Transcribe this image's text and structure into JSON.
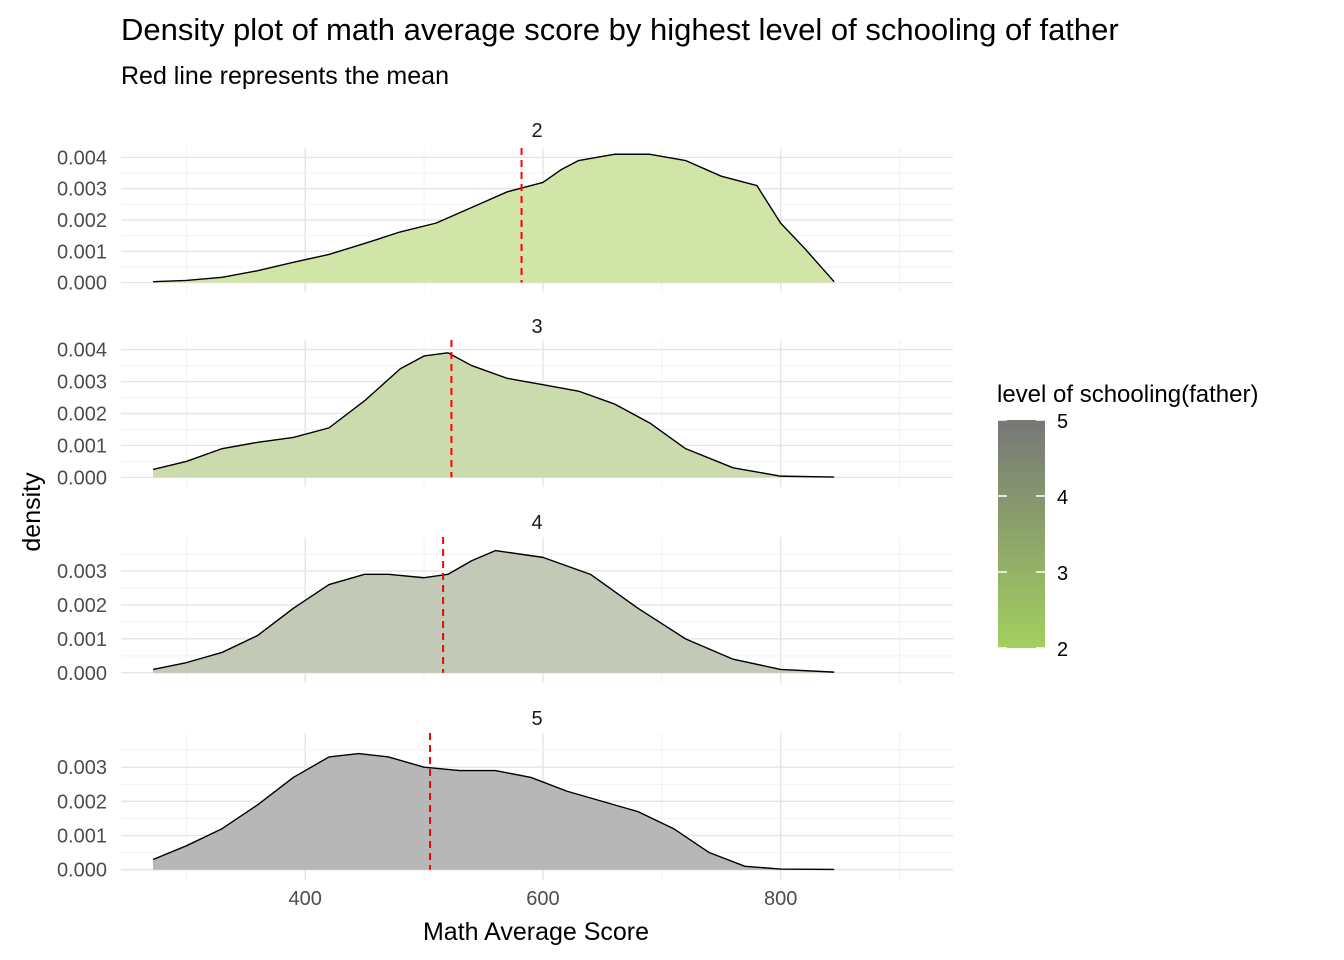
{
  "chart_data": {
    "type": "area",
    "title": "Density plot of math average score by highest level of schooling of father",
    "subtitle": "Red line represents the mean",
    "xlabel": "Math Average Score",
    "ylabel": "density",
    "xlim": [
      245,
      945
    ],
    "x_ticks": [
      400,
      600,
      800
    ],
    "x_tick_labels": [
      "400",
      "600",
      "800"
    ],
    "grid": true,
    "mean_line_color": "#ff0000",
    "legend": {
      "title": "level of schooling(father)",
      "position": "right",
      "min": 2,
      "max": 5,
      "labels": [
        "2",
        "3",
        "4",
        "5"
      ],
      "low_color": "#a2d05e",
      "high_color": "#777777"
    },
    "panels": [
      {
        "label": "2",
        "level": 2,
        "fill": "#d1e5a9",
        "mean": 582,
        "ylim": [
          -0.0003,
          0.0043
        ],
        "y_ticks": [
          0,
          0.001,
          0.002,
          0.003,
          0.004
        ],
        "y_tick_labels": [
          "0.000",
          "0.001",
          "0.002",
          "0.003",
          "0.004"
        ],
        "x": [
          272,
          300,
          330,
          360,
          390,
          420,
          450,
          480,
          510,
          540,
          570,
          600,
          615,
          630,
          660,
          690,
          720,
          750,
          780,
          800,
          820,
          845
        ],
        "y": [
          3e-05,
          7e-05,
          0.00017,
          0.00038,
          0.00065,
          0.0009,
          0.00125,
          0.00162,
          0.0019,
          0.0024,
          0.0029,
          0.0032,
          0.0036,
          0.0039,
          0.0041,
          0.0041,
          0.0039,
          0.0034,
          0.0031,
          0.0019,
          0.0011,
          3e-05
        ]
      },
      {
        "label": "3",
        "level": 3,
        "fill": "#cbdbae",
        "mean": 523,
        "ylim": [
          -0.0003,
          0.0043
        ],
        "y_ticks": [
          0,
          0.001,
          0.002,
          0.003,
          0.004
        ],
        "y_tick_labels": [
          "0.000",
          "0.001",
          "0.002",
          "0.003",
          "0.004"
        ],
        "x": [
          272,
          300,
          330,
          360,
          390,
          420,
          450,
          480,
          500,
          520,
          540,
          570,
          600,
          630,
          660,
          690,
          720,
          760,
          800,
          845
        ],
        "y": [
          0.00025,
          0.0005,
          0.0009,
          0.0011,
          0.00125,
          0.00155,
          0.0024,
          0.0034,
          0.0038,
          0.0039,
          0.0035,
          0.0031,
          0.0029,
          0.0027,
          0.0023,
          0.0017,
          0.0009,
          0.0003,
          4e-05,
          1e-05
        ]
      },
      {
        "label": "4",
        "level": 4,
        "fill": "#c2c9b6",
        "mean": 516,
        "ylim": [
          -0.0003,
          0.004
        ],
        "y_ticks": [
          0,
          0.001,
          0.002,
          0.003
        ],
        "y_tick_labels": [
          "0.000",
          "0.001",
          "0.002",
          "0.003"
        ],
        "x": [
          272,
          300,
          330,
          360,
          390,
          420,
          450,
          470,
          500,
          520,
          540,
          560,
          600,
          640,
          680,
          720,
          760,
          800,
          845
        ],
        "y": [
          0.0001,
          0.0003,
          0.0006,
          0.0011,
          0.0019,
          0.0026,
          0.0029,
          0.0029,
          0.0028,
          0.0029,
          0.0033,
          0.0036,
          0.0034,
          0.0029,
          0.0019,
          0.001,
          0.0004,
          0.0001,
          2e-05
        ]
      },
      {
        "label": "5",
        "level": 5,
        "fill": "#b7b7b7",
        "mean": 505,
        "ylim": [
          -0.0003,
          0.004
        ],
        "y_ticks": [
          0,
          0.001,
          0.002,
          0.003
        ],
        "y_tick_labels": [
          "0.000",
          "0.001",
          "0.002",
          "0.003"
        ],
        "x": [
          272,
          300,
          330,
          360,
          390,
          420,
          445,
          470,
          500,
          530,
          560,
          590,
          620,
          650,
          680,
          710,
          740,
          770,
          800,
          845
        ],
        "y": [
          0.0003,
          0.0007,
          0.0012,
          0.0019,
          0.0027,
          0.0033,
          0.0034,
          0.0033,
          0.003,
          0.0029,
          0.0029,
          0.0027,
          0.0023,
          0.002,
          0.0017,
          0.0012,
          0.0005,
          0.0001,
          2e-05,
          1e-05
        ]
      }
    ]
  }
}
